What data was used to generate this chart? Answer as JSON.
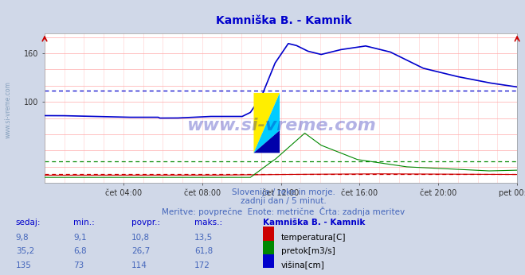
{
  "title": "Kamniška B. - Kamnik",
  "title_color": "#0000cc",
  "bg_color": "#d0d8e8",
  "plot_bg_color": "#ffffff",
  "grid_color_h": "#ffaaaa",
  "grid_color_v": "#ffcccc",
  "text_color": "#4466bb",
  "watermark": "www.si-vreme.com",
  "subtitle1": "Slovenija / reke in morje.",
  "subtitle2": "zadnji dan / 5 minut.",
  "subtitle3": "Meritve: povprečne  Enote: metrične  Črta: zadnja meritev",
  "xtick_labels": [
    "čet 04:00",
    "čet 08:00",
    "čet 12:00",
    "čet 16:00",
    "čet 20:00",
    "pet 00:00"
  ],
  "ylim": [
    0,
    185
  ],
  "yticks": [
    100,
    160
  ],
  "avg_line_blue": 114,
  "avg_line_green": 26.7,
  "avg_line_red": 10.8,
  "table_headers": [
    "sedaj:",
    "min.:",
    "povpr.:",
    "maks.:",
    "Kamniška B. - Kamnik"
  ],
  "table_rows": [
    [
      "9,8",
      "9,1",
      "10,8",
      "13,5",
      "temperatura[C]",
      "#cc0000"
    ],
    [
      "35,2",
      "6,8",
      "26,7",
      "61,8",
      "pretok[m3/s]",
      "#008800"
    ],
    [
      "135",
      "73",
      "114",
      "172",
      "višina[cm]",
      "#0000cc"
    ]
  ]
}
